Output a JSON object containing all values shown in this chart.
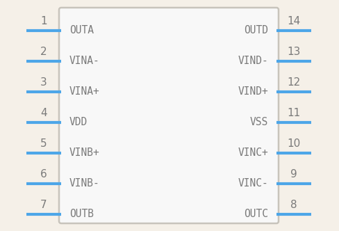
{
  "background_color": "#f5f0e8",
  "box_color": "#c8c4bc",
  "box_fill": "#f8f8f8",
  "pin_color": "#4da6e8",
  "text_color": "#7a7a7a",
  "number_color": "#7a7a7a",
  "left_pins": [
    {
      "num": "1",
      "label": "OUTA"
    },
    {
      "num": "2",
      "label": "VINA-"
    },
    {
      "num": "3",
      "label": "VINA+"
    },
    {
      "num": "4",
      "label": "VDD"
    },
    {
      "num": "5",
      "label": "VINB+"
    },
    {
      "num": "6",
      "label": "VINB-"
    },
    {
      "num": "7",
      "label": "OUTB"
    }
  ],
  "right_pins": [
    {
      "num": "14",
      "label": "OUTD"
    },
    {
      "num": "13",
      "label": "VIND-"
    },
    {
      "num": "12",
      "label": "VIND+"
    },
    {
      "num": "11",
      "label": "VSS"
    },
    {
      "num": "10",
      "label": "VINC+"
    },
    {
      "num": "9",
      "label": "VINC-"
    },
    {
      "num": "8",
      "label": "OUTC"
    }
  ],
  "font_size_label": 10.5,
  "font_size_num": 11,
  "pin_linewidth": 3.0
}
